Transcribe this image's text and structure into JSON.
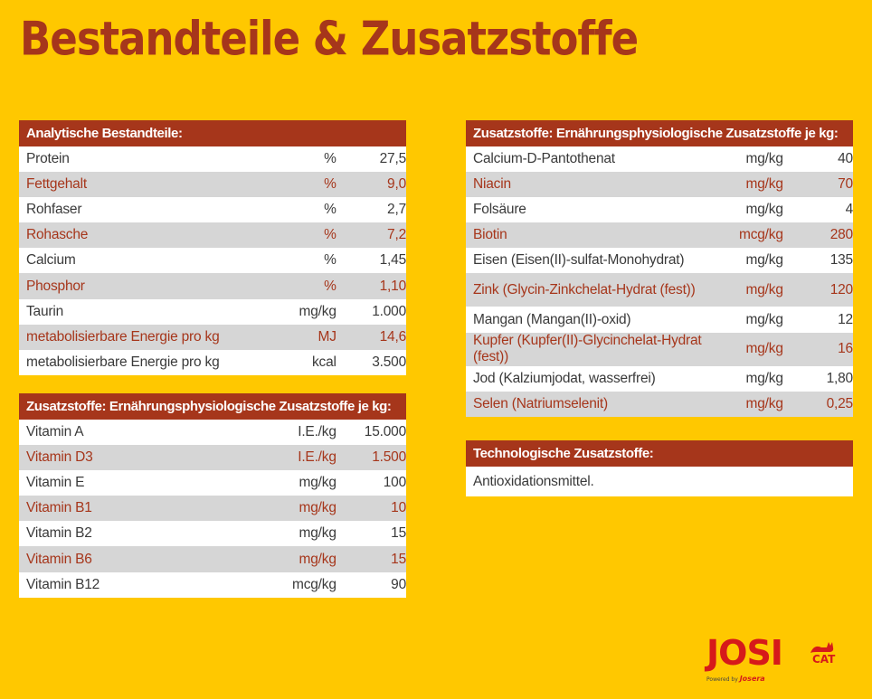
{
  "title": "Bestandteile & Zusatzstoffe",
  "analytisch": {
    "header": "Analytische Bestandteile:",
    "rows": [
      {
        "name": "Protein",
        "unit": "%",
        "value": "27,5"
      },
      {
        "name": "Fettgehalt",
        "unit": "%",
        "value": "9,0"
      },
      {
        "name": "Rohfaser",
        "unit": "%",
        "value": "2,7"
      },
      {
        "name": "Rohasche",
        "unit": "%",
        "value": "7,2"
      },
      {
        "name": "Calcium",
        "unit": "%",
        "value": "1,45"
      },
      {
        "name": "Phosphor",
        "unit": "%",
        "value": "1,10"
      },
      {
        "name": "Taurin",
        "unit": "mg/kg",
        "value": "1.000"
      },
      {
        "name": "metabolisierbare Energie pro kg",
        "unit": "MJ",
        "value": "14,6"
      },
      {
        "name": "metabolisierbare Energie pro kg",
        "unit": "kcal",
        "value": "3.500"
      }
    ]
  },
  "vitamine": {
    "header": "Zusatzstoffe: Ernährungsphysiologische Zusatzstoffe je kg:",
    "rows": [
      {
        "name": "Vitamin A",
        "unit": "I.E./kg",
        "value": "15.000"
      },
      {
        "name": "Vitamin D3",
        "unit": "I.E./kg",
        "value": "1.500"
      },
      {
        "name": "Vitamin E",
        "unit": "mg/kg",
        "value": "100"
      },
      {
        "name": "Vitamin B1",
        "unit": "mg/kg",
        "value": "10"
      },
      {
        "name": "Vitamin B2",
        "unit": "mg/kg",
        "value": "15"
      },
      {
        "name": "Vitamin B6",
        "unit": "mg/kg",
        "value": "15"
      },
      {
        "name": "Vitamin B12",
        "unit": "mcg/kg",
        "value": "90"
      }
    ]
  },
  "spurenelemente": {
    "header": "Zusatzstoffe: Ernährungsphysiologische Zusatzstoffe je kg:",
    "rows": [
      {
        "name": "Calcium-D-Pantothenat",
        "unit": "mg/kg",
        "value": "40"
      },
      {
        "name": "Niacin",
        "unit": "mg/kg",
        "value": "70"
      },
      {
        "name": "Folsäure",
        "unit": "mg/kg",
        "value": "4"
      },
      {
        "name": "Biotin",
        "unit": "mcg/kg",
        "value": "280"
      },
      {
        "name": "Eisen (Eisen(II)-sulfat-Monohydrat)",
        "unit": "mg/kg",
        "value": "135"
      },
      {
        "name": "Zink (Glycin-Zinkchelat-Hydrat (fest))",
        "unit": "mg/kg",
        "value": "120"
      },
      {
        "name": "Mangan (Mangan(II)-oxid)",
        "unit": "mg/kg",
        "value": "12"
      },
      {
        "name": "Kupfer (Kupfer(II)-Glycinchelat-Hydrat (fest))",
        "unit": "mg/kg",
        "value": "16"
      },
      {
        "name": "Jod (Kalziumjodat, wasserfrei)",
        "unit": "mg/kg",
        "value": "1,80"
      },
      {
        "name": "Selen (Natriumselenit)",
        "unit": "mg/kg",
        "value": "0,25"
      }
    ]
  },
  "technologisch": {
    "header": "Technologische Zusatzstoffe:",
    "text": "Antioxidationsmittel."
  },
  "logo": {
    "brand": "JOSI",
    "cat": "CAT",
    "powered_prefix": "Powered by",
    "powered_brand": "Josera"
  },
  "colors": {
    "background": "#FFC800",
    "accent": "#A6361B",
    "row_alt": "#D6D6D6",
    "logo_red": "#D61A1A"
  }
}
